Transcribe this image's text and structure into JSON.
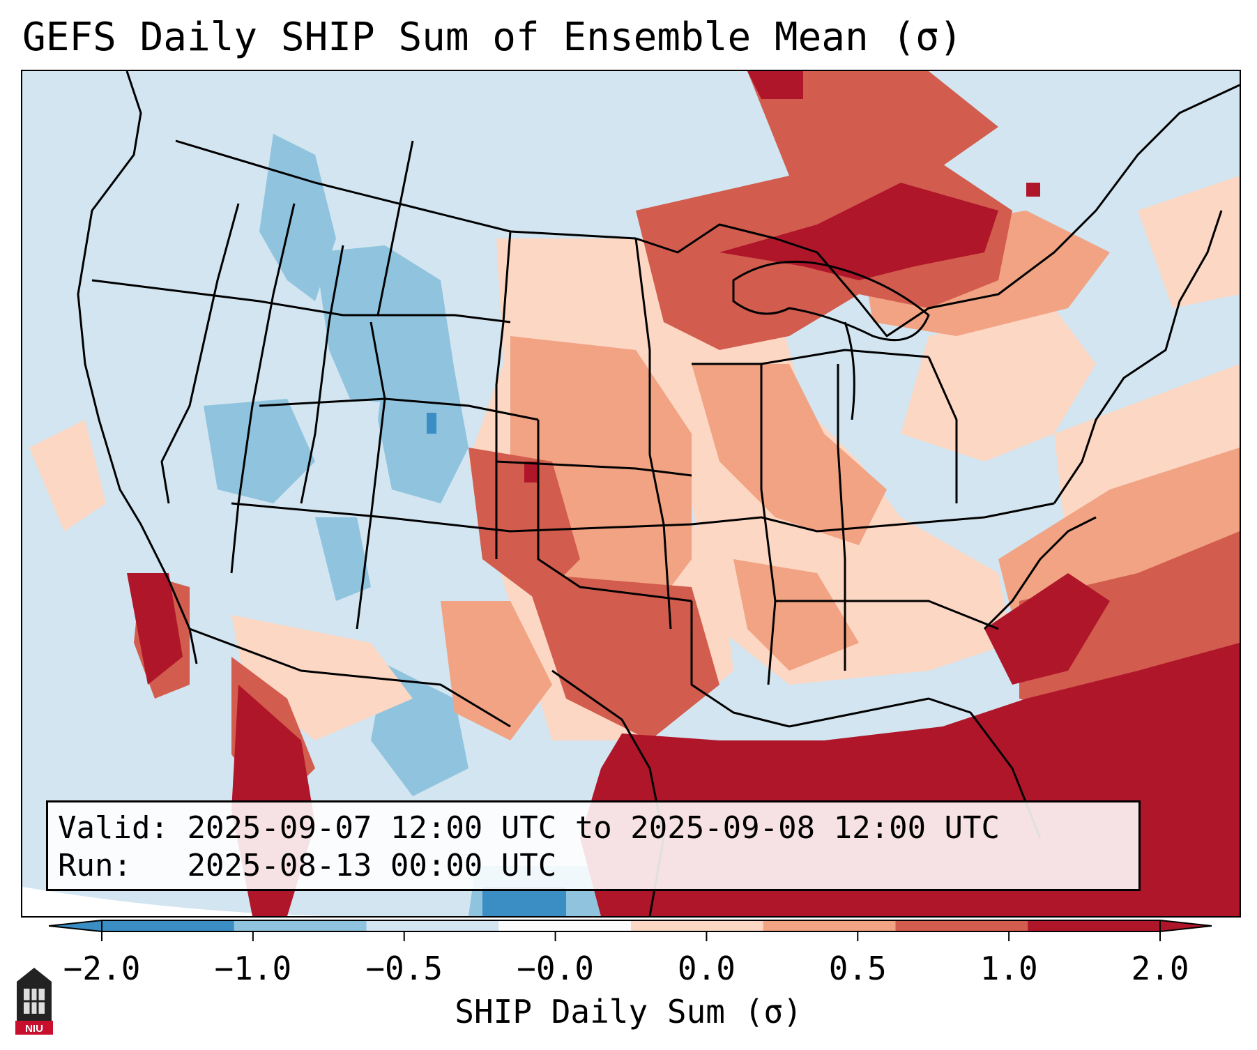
{
  "title": "GEFS Daily SHIP Sum of Ensemble Mean (σ)",
  "info": {
    "valid_label": "Valid:",
    "valid_value": "2025-09-07 12:00 UTC to 2025-09-08 12:00 UTC",
    "run_label": "Run:",
    "run_value": "2025-08-13 00:00 UTC"
  },
  "colorbar": {
    "label": "SHIP Daily Sum (σ)",
    "ticks": [
      "−2.0",
      "−1.0",
      "−0.5",
      "−0.0",
      "0.0",
      "0.5",
      "1.0",
      "2.0"
    ],
    "colors": [
      "#3a8ec4",
      "#8fc3de",
      "#d2e5f0",
      "#fbfbfb",
      "#fcd7c4",
      "#f1a383",
      "#d25c4d",
      "#b0162a"
    ],
    "extend": "both"
  },
  "legend_colors": {
    "strong_negative": "#3a8ec4",
    "negative": "#8fc3de",
    "weak_negative": "#d2e5f0",
    "weak_positive": "#fcd7c4",
    "positive": "#f1a383",
    "strong_positive": "#d25c4d",
    "extreme_positive": "#b0162a"
  },
  "logo": {
    "text": "NIU"
  }
}
